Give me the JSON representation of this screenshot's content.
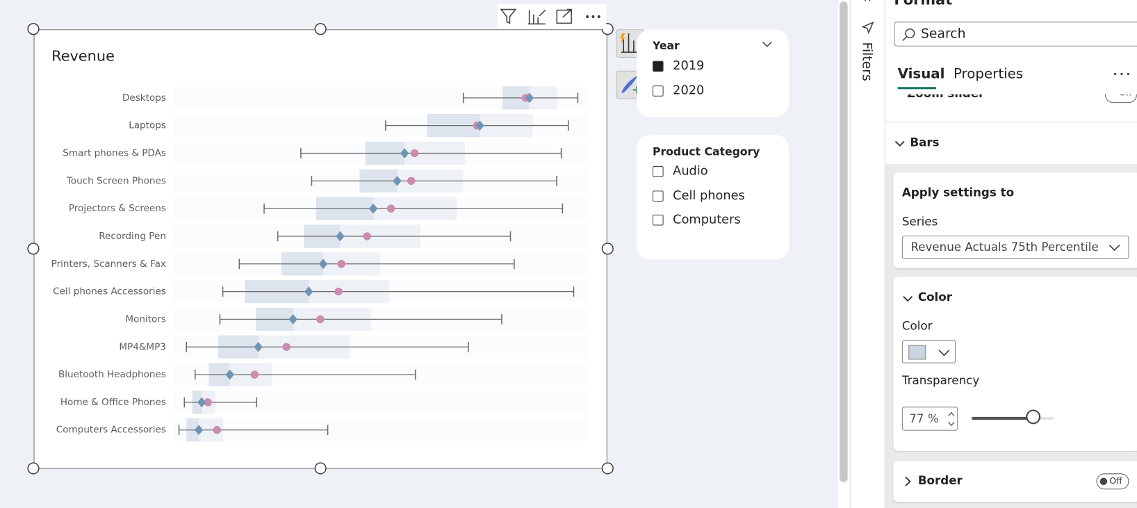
{
  "chart_data": {
    "type": "box",
    "title": "Revenue",
    "categories": [
      "Desktops",
      "Laptops",
      "Smart phones & PDAs",
      "Touch Screen Phones",
      "Projectors & Screens",
      "Recording Pen",
      "Printers, Scanners & Fax",
      "Cell phones Accessories",
      "Monitors",
      "MP4&MP3",
      "Bluetooth Headphones",
      "Home & Office Phones",
      "Computers Accessories"
    ],
    "low": [
      70.0,
      51.2,
      30.7,
      33.3,
      21.8,
      25.1,
      15.8,
      11.8,
      11.1,
      3.0,
      5.1,
      2.5,
      1.2
    ],
    "q1": [
      79.5,
      61.2,
      46.3,
      44.9,
      34.4,
      31.4,
      26.0,
      17.2,
      19.8,
      10.7,
      8.4,
      4.4,
      3.0
    ],
    "median": [
      86.0,
      74.0,
      55.8,
      54.0,
      48.2,
      40.2,
      36.1,
      32.6,
      28.8,
      20.4,
      13.5,
      6.7,
      6.0
    ],
    "q3": [
      92.6,
      86.8,
      70.4,
      69.8,
      68.4,
      59.6,
      49.8,
      52.1,
      47.7,
      42.6,
      23.7,
      10.0,
      11.9
    ],
    "high": [
      97.7,
      95.4,
      93.7,
      92.6,
      94.0,
      81.4,
      82.3,
      96.7,
      79.3,
      71.2,
      58.4,
      20.0,
      37.2
    ],
    "mean": [
      85.1,
      73.3,
      58.2,
      57.4,
      52.5,
      46.7,
      40.5,
      39.8,
      35.4,
      27.2,
      19.5,
      8.2,
      10.4
    ],
    "xlim": [
      0,
      100
    ],
    "colors": {
      "lower_box": "#dde4ee",
      "upper_box": "#eef1f6",
      "median": "#6f94b4",
      "mean": "#cc8cb0",
      "whisker": "#6b6b6b"
    }
  },
  "slicers": [
    {
      "title": "Year",
      "items": [
        {
          "label": "2019",
          "checked": true
        },
        {
          "label": "2020",
          "checked": false
        }
      ]
    },
    {
      "title": "Product Category",
      "items": [
        {
          "label": "Audio",
          "checked": false
        },
        {
          "label": "Cell phones",
          "checked": false
        },
        {
          "label": "Computers",
          "checked": false
        }
      ]
    }
  ],
  "filters_pane": {
    "title": "Filters"
  },
  "format_pane": {
    "title": "Format",
    "search": "Search",
    "tabs": [
      "Visual",
      "Properties"
    ],
    "zoom_slider": "Zoom slider",
    "zoom_toggle": "Off",
    "bars": "Bars",
    "apply_settings_to": "Apply settings to",
    "series_label": "Series",
    "series_value": "Revenue Actuals 75th Percentile",
    "color_section": "Color",
    "color_label": "Color",
    "transparency_label": "Transparency",
    "transparency_value": "77 %",
    "border": "Border",
    "border_toggle": "Off"
  }
}
